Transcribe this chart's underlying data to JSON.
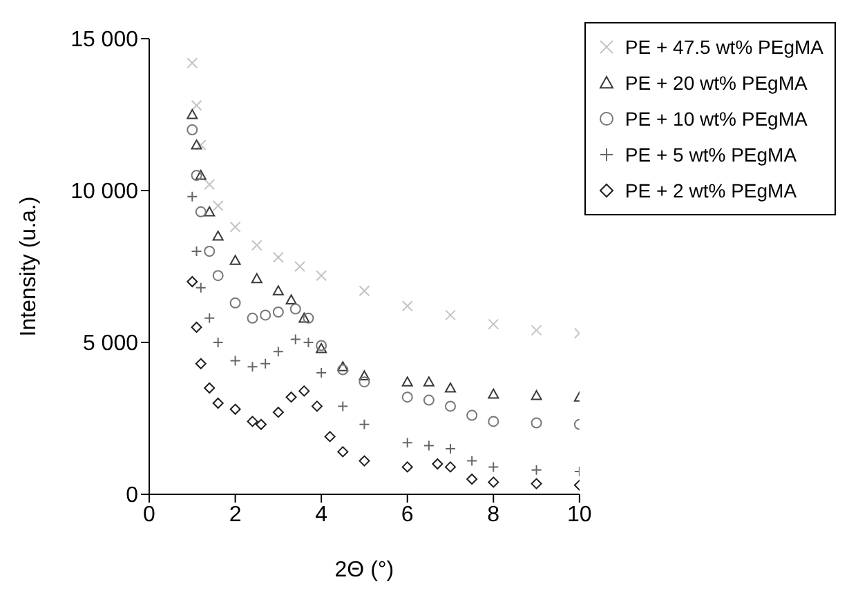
{
  "chart_data": {
    "type": "scatter",
    "xlabel": "2Θ (°)",
    "ylabel": "Intensity (u.a.)",
    "xlim": [
      0,
      10
    ],
    "xticks": [
      0,
      2,
      4,
      6,
      8,
      10
    ],
    "ylim": [
      0,
      15000
    ],
    "yticks": [
      0,
      {
        "value": 5000,
        "label": "5 000"
      },
      {
        "value": 10000,
        "label": "10 000"
      },
      {
        "value": 15000,
        "label": "15 000"
      }
    ],
    "grid": false,
    "legend": "top right",
    "series": [
      {
        "name": "PE + 47.5 wt% PEgMA",
        "color": "#c4c4c4",
        "marker": "x",
        "x": [
          1,
          1.1,
          1.2,
          1.4,
          1.6,
          2,
          2.5,
          3,
          3.5,
          4,
          5,
          6,
          7,
          8,
          9,
          10
        ],
        "values": [
          14200,
          12800,
          11500,
          10200,
          9500,
          8800,
          8200,
          7800,
          7500,
          7200,
          6700,
          6200,
          5900,
          5600,
          5400,
          5300
        ]
      },
      {
        "name": "PE + 20 wt% PEgMA",
        "color": "#3a3a3a",
        "marker": "triangle",
        "x": [
          1,
          1.1,
          1.2,
          1.4,
          1.6,
          2,
          2.5,
          3,
          3.3,
          3.6,
          4,
          4.5,
          5,
          6,
          6.5,
          7,
          8,
          9,
          10
        ],
        "values": [
          12500,
          11500,
          10500,
          9300,
          8500,
          7700,
          7100,
          6700,
          6400,
          5800,
          4800,
          4200,
          3900,
          3700,
          3700,
          3500,
          3300,
          3250,
          3200
        ]
      },
      {
        "name": "PE + 10 wt% PEgMA",
        "color": "#777777",
        "marker": "circle",
        "x": [
          1,
          1.1,
          1.2,
          1.4,
          1.6,
          2,
          2.4,
          2.7,
          3,
          3.4,
          3.7,
          4,
          4.5,
          5,
          6,
          6.5,
          7,
          7.5,
          8,
          9,
          10
        ],
        "values": [
          12000,
          10500,
          9300,
          8000,
          7200,
          6300,
          5800,
          5900,
          6000,
          6100,
          5800,
          4900,
          4100,
          3700,
          3200,
          3100,
          2900,
          2600,
          2400,
          2350,
          2300
        ]
      },
      {
        "name": "PE + 5 wt% PEgMA",
        "color": "#666666",
        "marker": "cross",
        "x": [
          1,
          1.1,
          1.2,
          1.4,
          1.6,
          2,
          2.4,
          2.7,
          3,
          3.4,
          3.7,
          4,
          4.5,
          5,
          6,
          6.5,
          7,
          7.5,
          8,
          9,
          10
        ],
        "values": [
          9800,
          8000,
          6800,
          5800,
          5000,
          4400,
          4200,
          4300,
          4700,
          5100,
          5000,
          4000,
          2900,
          2300,
          1700,
          1600,
          1500,
          1100,
          900,
          800,
          750
        ]
      },
      {
        "name": "PE + 2 wt% PEgMA",
        "color": "#1e1e1e",
        "marker": "diamond",
        "x": [
          1,
          1.1,
          1.2,
          1.4,
          1.6,
          2,
          2.4,
          2.6,
          3,
          3.3,
          3.6,
          3.9,
          4.2,
          4.5,
          5,
          6,
          6.7,
          7,
          7.5,
          8,
          9,
          10
        ],
        "values": [
          7000,
          5500,
          4300,
          3500,
          3000,
          2800,
          2400,
          2300,
          2700,
          3200,
          3400,
          2900,
          1900,
          1400,
          1100,
          900,
          1000,
          900,
          500,
          400,
          350,
          300
        ]
      }
    ]
  }
}
